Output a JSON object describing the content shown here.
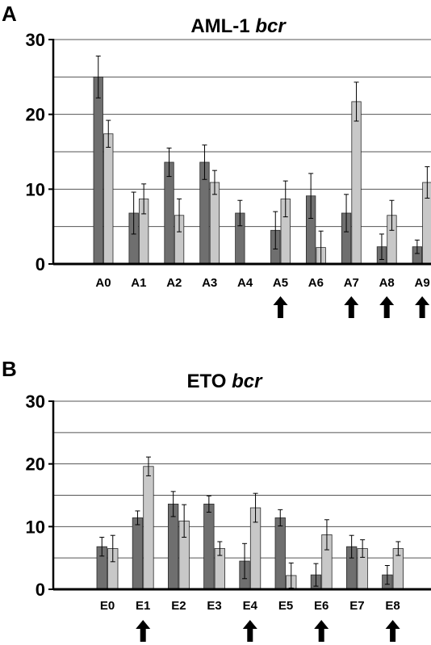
{
  "colors": {
    "series_dark": "#6f6f6f",
    "series_light": "#c8c8c8",
    "bar_stroke": "#2a2a2a",
    "grid": "#555555",
    "axis": "#000000",
    "arrow": "#000000"
  },
  "chart_data": [
    {
      "panel": "A",
      "type": "bar",
      "title_plain": "AML-1 ",
      "title_italic": "bcr",
      "categories": [
        "A0",
        "A1",
        "A2",
        "A3",
        "A4",
        "A5",
        "A6",
        "A7",
        "A8",
        "A9"
      ],
      "series": [
        {
          "values": [
            25,
            6.8,
            13.6,
            13.6,
            6.8,
            4.5,
            9.1,
            6.8,
            2.3,
            2.3
          ],
          "errors": [
            2.8,
            2.8,
            1.9,
            2.3,
            1.7,
            2.5,
            3.0,
            2.5,
            1.7,
            0.9
          ]
        },
        {
          "values": [
            17.4,
            8.7,
            6.5,
            10.9,
            null,
            8.7,
            2.2,
            21.7,
            6.5,
            10.9
          ],
          "errors": [
            1.8,
            2.0,
            2.2,
            1.6,
            null,
            2.4,
            2.2,
            2.6,
            2.0,
            2.1
          ]
        }
      ],
      "ylim": [
        0,
        30
      ],
      "yticks": [
        0,
        10,
        20,
        30
      ],
      "gridlines": [
        5,
        10,
        15,
        20,
        25,
        30
      ],
      "arrows_below": [
        "A5",
        "A7",
        "A8",
        "A9"
      ]
    },
    {
      "panel": "B",
      "type": "bar",
      "title_plain": "ETO ",
      "title_italic": "bcr",
      "categories": [
        "E0",
        "E1",
        "E2",
        "E3",
        "E4",
        "E5",
        "E6",
        "E7",
        "E8"
      ],
      "series": [
        {
          "values": [
            6.8,
            11.4,
            13.6,
            13.6,
            4.5,
            11.4,
            2.3,
            6.8,
            2.3
          ],
          "errors": [
            1.5,
            1.1,
            2.0,
            1.3,
            2.8,
            1.3,
            1.8,
            1.8,
            1.5
          ]
        },
        {
          "values": [
            6.5,
            19.6,
            10.9,
            6.5,
            13.0,
            2.2,
            8.7,
            6.5,
            6.5
          ],
          "errors": [
            2.1,
            1.5,
            2.6,
            1.1,
            2.3,
            2.0,
            2.4,
            1.4,
            1.1
          ]
        }
      ],
      "ylim": [
        0,
        30
      ],
      "yticks": [
        0,
        10,
        20,
        30
      ],
      "gridlines": [
        5,
        10,
        15,
        20,
        25,
        30
      ],
      "arrows_below": [
        "E1",
        "E4",
        "E6",
        "E8"
      ]
    }
  ]
}
